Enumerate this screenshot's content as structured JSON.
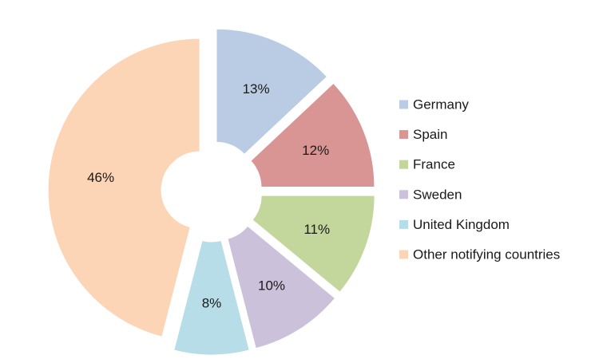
{
  "chart_data": {
    "type": "pie",
    "style": "exploded-donut",
    "title": "",
    "categories": [
      "Germany",
      "Spain",
      "France",
      "Sweden",
      "United Kingdom",
      "Other notifying countries"
    ],
    "values": [
      13,
      12,
      11,
      10,
      8,
      46
    ],
    "labels": [
      "13%",
      "12%",
      "11%",
      "10%",
      "8%",
      "46%"
    ],
    "colors": [
      "#b9cce4",
      "#d99594",
      "#c3d69b",
      "#ccc1da",
      "#b7dde8",
      "#fbd5b5"
    ],
    "legend_position": "right"
  }
}
